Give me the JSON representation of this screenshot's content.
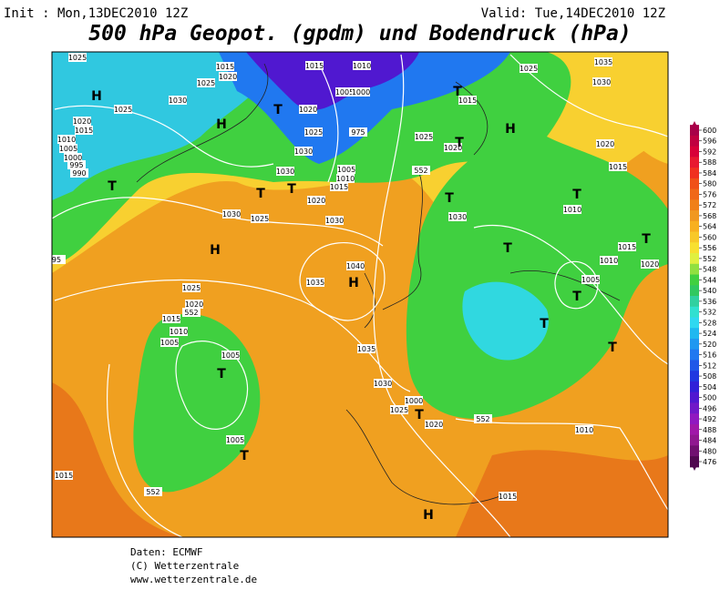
{
  "header": {
    "init": "Init : Mon,13DEC2010 12Z",
    "valid": "Valid: Tue,14DEC2010 12Z",
    "title": "500 hPa Geopot. (gpdm) und Bodendruck (hPa)"
  },
  "map": {
    "pressure_labels": [
      "1025",
      "1015",
      "1020",
      "1025",
      "1015",
      "1010",
      "1025",
      "1035",
      "1030",
      "1030",
      "1025",
      "1020",
      "1015",
      "1010",
      "1005",
      "1000",
      "995",
      "990",
      "1005",
      "1000",
      "1020",
      "1015",
      "1025",
      "975",
      "1025",
      "1030",
      "1020",
      "1020",
      "1015",
      "1030",
      "1005",
      "1010",
      "1015",
      "552",
      "1020",
      "1030",
      "1025",
      "1030",
      "1030",
      "1010",
      "1015",
      "1010",
      "1020",
      "1005",
      "1040",
      "1035",
      "1025",
      "1020",
      "552",
      "1015",
      "1010",
      "1005",
      "1005",
      "1035",
      "1030",
      "1000",
      "1025",
      "1020",
      "552",
      "1010",
      "1005",
      "1015",
      "552",
      "1015",
      "95"
    ],
    "centers": [
      "H",
      "H",
      "H",
      "H",
      "H",
      "H",
      "T",
      "T",
      "T",
      "T",
      "T",
      "T",
      "T",
      "T",
      "T",
      "T",
      "T",
      "T",
      "T",
      "T",
      "T",
      "T"
    ]
  },
  "colorbar": {
    "labels": [
      600,
      596,
      592,
      588,
      584,
      580,
      576,
      572,
      568,
      564,
      560,
      556,
      552,
      548,
      544,
      540,
      536,
      532,
      528,
      524,
      520,
      516,
      512,
      508,
      504,
      500,
      496,
      492,
      488,
      484,
      480,
      476
    ],
    "colors": [
      "#a80048",
      "#c00040",
      "#d80038",
      "#e81830",
      "#f03020",
      "#f05018",
      "#f06818",
      "#f08018",
      "#f09820",
      "#f8b020",
      "#f8c828",
      "#f8e030",
      "#e0f040",
      "#90e040",
      "#40d040",
      "#30c860",
      "#30d0a0",
      "#30e0d0",
      "#30d8f0",
      "#20b8f0",
      "#2098f0",
      "#2078f0",
      "#2058e8",
      "#2038e0",
      "#3020d8",
      "#5018d0",
      "#7018c8",
      "#9018c0",
      "#a018a8",
      "#901890",
      "#701070",
      "#500850"
    ]
  },
  "footer": {
    "lines": [
      "Daten: ECMWF",
      "(C) Wetterzentrale",
      "www.wetterzentrale.de"
    ]
  }
}
